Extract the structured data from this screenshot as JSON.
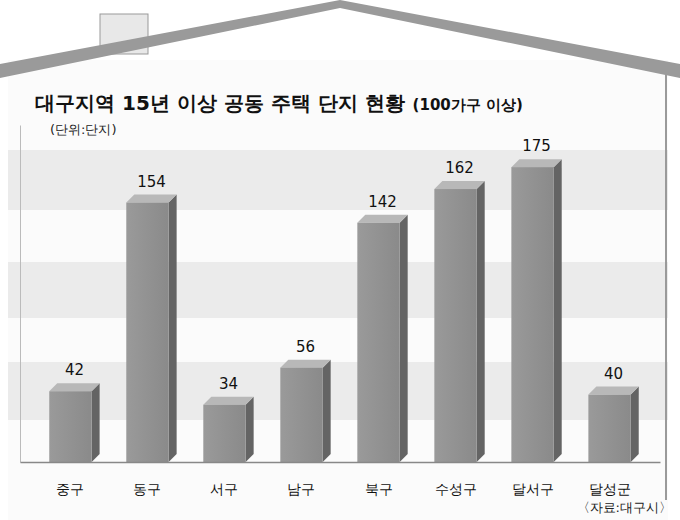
{
  "chart_data": {
    "type": "bar",
    "title": "대구지역 15년 이상 공동 주택 단지 현황",
    "subtitle": "(100가구 이상)",
    "ylabel": "(단위:단지)",
    "source": "〈자료:대구시〉",
    "categories": [
      "중구",
      "동구",
      "서구",
      "남구",
      "북구",
      "수성구",
      "달서구",
      "달성군"
    ],
    "values": [
      42,
      154,
      34,
      56,
      142,
      162,
      175,
      40
    ],
    "color": "#8a8a8a",
    "ylim": [
      0,
      200
    ],
    "yticks": [],
    "data_labels": true,
    "tick_labels": "x",
    "grid": false
  }
}
